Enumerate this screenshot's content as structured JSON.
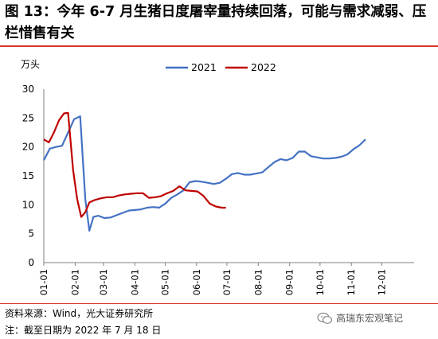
{
  "title": "图 13：今年 6-7 月生猪日度屠宰量持续回落，可能与需求减弱、压栏惜售有关",
  "source": "资料来源：Wind，光大证券研究所",
  "note": "注：截至日期为 2022 年 7 月 18 日",
  "watermark": "高瑞东宏观笔记",
  "colors": {
    "series_2021": "#4472c4",
    "series_2022": "#c00000",
    "rule": "#d63a2a",
    "axis": "#7f7f7f"
  },
  "chart_data": {
    "type": "line",
    "ylabel": "万头",
    "ylim": [
      0,
      30
    ],
    "yticks": [
      0,
      5,
      10,
      15,
      20,
      25,
      30
    ],
    "xlim": [
      0,
      366
    ],
    "xticks": [
      {
        "label": "01-01",
        "day": 0
      },
      {
        "label": "02-01",
        "day": 31
      },
      {
        "label": "03-01",
        "day": 59
      },
      {
        "label": "04-01",
        "day": 90
      },
      {
        "label": "05-01",
        "day": 120
      },
      {
        "label": "06-01",
        "day": 151
      },
      {
        "label": "07-01",
        "day": 181
      },
      {
        "label": "08-01",
        "day": 212
      },
      {
        "label": "09-01",
        "day": 243
      },
      {
        "label": "10-01",
        "day": 273
      },
      {
        "label": "11-01",
        "day": 304
      },
      {
        "label": "12-01",
        "day": 334
      }
    ],
    "legend_position": "top",
    "series": [
      {
        "name": "2021",
        "color": "#4472c4",
        "points": [
          [
            0,
            17.7
          ],
          [
            6,
            19.7
          ],
          [
            12,
            20.0
          ],
          [
            18,
            20.2
          ],
          [
            24,
            22.5
          ],
          [
            30,
            24.8
          ],
          [
            36,
            25.3
          ],
          [
            41,
            11.0
          ],
          [
            45,
            5.5
          ],
          [
            49,
            7.9
          ],
          [
            54,
            8.1
          ],
          [
            60,
            7.7
          ],
          [
            66,
            7.8
          ],
          [
            72,
            8.2
          ],
          [
            78,
            8.6
          ],
          [
            84,
            9.0
          ],
          [
            90,
            9.1
          ],
          [
            96,
            9.2
          ],
          [
            102,
            9.5
          ],
          [
            108,
            9.6
          ],
          [
            114,
            9.5
          ],
          [
            120,
            10.2
          ],
          [
            126,
            11.2
          ],
          [
            132,
            11.8
          ],
          [
            138,
            12.5
          ],
          [
            144,
            13.9
          ],
          [
            150,
            14.1
          ],
          [
            156,
            14.0
          ],
          [
            162,
            13.8
          ],
          [
            168,
            13.6
          ],
          [
            174,
            13.8
          ],
          [
            180,
            14.5
          ],
          [
            186,
            15.3
          ],
          [
            192,
            15.5
          ],
          [
            198,
            15.2
          ],
          [
            204,
            15.2
          ],
          [
            210,
            15.4
          ],
          [
            216,
            15.6
          ],
          [
            222,
            16.5
          ],
          [
            228,
            17.4
          ],
          [
            234,
            17.9
          ],
          [
            240,
            17.7
          ],
          [
            246,
            18.1
          ],
          [
            252,
            19.2
          ],
          [
            258,
            19.2
          ],
          [
            264,
            18.4
          ],
          [
            270,
            18.2
          ],
          [
            276,
            18.0
          ],
          [
            282,
            18.0
          ],
          [
            288,
            18.1
          ],
          [
            294,
            18.3
          ],
          [
            300,
            18.7
          ],
          [
            306,
            19.6
          ],
          [
            312,
            20.3
          ],
          [
            318,
            21.3
          ]
        ]
      },
      {
        "name": "2022",
        "color": "#c00000",
        "points": [
          [
            0,
            21.3
          ],
          [
            5,
            20.8
          ],
          [
            10,
            22.5
          ],
          [
            15,
            24.6
          ],
          [
            20,
            25.8
          ],
          [
            24,
            25.9
          ],
          [
            29,
            16.0
          ],
          [
            33,
            11.0
          ],
          [
            37,
            7.9
          ],
          [
            41,
            8.7
          ],
          [
            45,
            10.4
          ],
          [
            50,
            10.8
          ],
          [
            56,
            11.1
          ],
          [
            62,
            11.3
          ],
          [
            68,
            11.3
          ],
          [
            74,
            11.6
          ],
          [
            80,
            11.8
          ],
          [
            86,
            11.9
          ],
          [
            92,
            12.0
          ],
          [
            98,
            12.0
          ],
          [
            104,
            11.2
          ],
          [
            110,
            11.3
          ],
          [
            116,
            11.5
          ],
          [
            122,
            12.0
          ],
          [
            128,
            12.4
          ],
          [
            134,
            13.2
          ],
          [
            140,
            12.5
          ],
          [
            146,
            12.4
          ],
          [
            152,
            12.3
          ],
          [
            158,
            11.5
          ],
          [
            164,
            10.2
          ],
          [
            170,
            9.7
          ],
          [
            176,
            9.5
          ],
          [
            180,
            9.5
          ]
        ]
      }
    ]
  }
}
